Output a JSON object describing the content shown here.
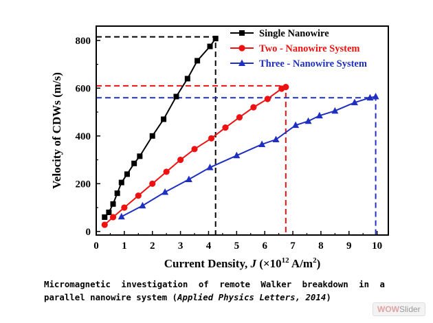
{
  "chart_data": {
    "type": "line",
    "xlabel_main": "Current Density, ",
    "xlabel_var": "J",
    "xlabel_unit_pre": " (×10",
    "xlabel_exp": "12",
    "xlabel_unit_mid": " A/m",
    "xlabel_exp2": "2",
    "xlabel_unit_post": ")",
    "ylabel": "Velocity of CDWs (m/s)",
    "xlim": [
      0,
      10.4
    ],
    "ylim": [
      -15,
      860
    ],
    "xticks": [
      "0",
      "1",
      "2",
      "3",
      "4",
      "5",
      "6",
      "7",
      "8",
      "9",
      "10"
    ],
    "yticks": [
      "0",
      "200",
      "400",
      "600",
      "800"
    ],
    "legend_position": "top-right",
    "series": [
      {
        "name": "Single Nanowire",
        "color": "#000000",
        "marker": "square",
        "x": [
          0.3,
          0.45,
          0.6,
          0.75,
          0.9,
          1.1,
          1.35,
          1.55,
          2.0,
          2.4,
          2.85,
          3.25,
          3.6,
          4.05,
          4.25
        ],
        "y": [
          60,
          80,
          115,
          160,
          205,
          240,
          285,
          315,
          400,
          470,
          565,
          640,
          715,
          775,
          808
        ]
      },
      {
        "name": "Two - Nanowire System",
        "color": "#ee1111",
        "marker": "circle",
        "x": [
          0.3,
          0.6,
          1.0,
          1.5,
          2.0,
          2.5,
          3.0,
          3.5,
          4.1,
          4.6,
          5.1,
          5.6,
          6.1,
          6.6,
          6.75
        ],
        "y": [
          28,
          60,
          100,
          150,
          200,
          250,
          300,
          345,
          390,
          435,
          478,
          520,
          555,
          598,
          605
        ]
      },
      {
        "name": "Three - Nanowire System",
        "color": "#1f2fbf",
        "marker": "triangle",
        "x": [
          0.9,
          1.65,
          2.45,
          3.3,
          4.05,
          5.0,
          5.9,
          6.4,
          7.1,
          7.55,
          7.95,
          8.5,
          9.2,
          9.75,
          9.95
        ],
        "y": [
          62,
          108,
          165,
          218,
          268,
          318,
          365,
          385,
          445,
          462,
          485,
          505,
          540,
          560,
          565
        ]
      }
    ],
    "reference_lines": [
      {
        "x": 4.25,
        "y": 815,
        "color": "#000000"
      },
      {
        "x": 6.75,
        "y": 610,
        "color": "#ee1111"
      },
      {
        "x": 9.95,
        "y": 560,
        "color": "#1f2fbf"
      }
    ]
  },
  "caption": {
    "line1": "Micromagnetic investigation of remote Walker breakdown in a",
    "line2_pre": "parallel nanowire system (",
    "line2_italic": "Applied Physics Letters, 2014",
    "line2_post": ")"
  },
  "watermark": {
    "part1": "WOW",
    "part2": "Slider"
  }
}
